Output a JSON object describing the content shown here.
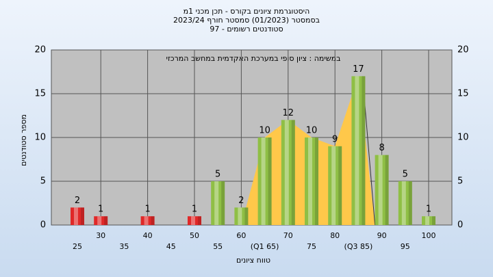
{
  "chart_data": {
    "type": "bar",
    "title": [
      "היסטוגרמת ציונים בקורס - תכן מכני 1מ",
      "בסמסטר  (01/2023)  סמסטר חורף  2023/24",
      "סטודנטים רשומים - 97"
    ],
    "annotation": "במשימה : ציון סופי במערכת האקדמית במחשב המרכזי",
    "y_label": "מספר סטודנטים",
    "x_label": "טווח ציונים",
    "categories": [
      "25",
      "30",
      "35",
      "40",
      "45",
      "50",
      "55",
      "60",
      "(Q1 65)",
      "70",
      "75",
      "80",
      "(Q3 85)",
      "90",
      "95",
      "100"
    ],
    "values": [
      2,
      1,
      0,
      1,
      0,
      1,
      5,
      2,
      10,
      12,
      10,
      9,
      17,
      8,
      5,
      1
    ],
    "bar_colors": [
      "#e02828",
      "#e02828",
      "#e02828",
      "#e02828",
      "#e02828",
      "#e02828",
      "#8fbf45",
      "#8fbf45",
      "#8fbf45",
      "#8fbf45",
      "#8fbf45",
      "#8fbf45",
      "#8fbf45",
      "#8fbf45",
      "#8fbf45",
      "#8fbf45"
    ],
    "quartile_color": "#ffc84a",
    "ylim": [
      0,
      20
    ],
    "yticks": [
      0,
      5,
      10,
      15,
      20
    ],
    "grid": true
  }
}
